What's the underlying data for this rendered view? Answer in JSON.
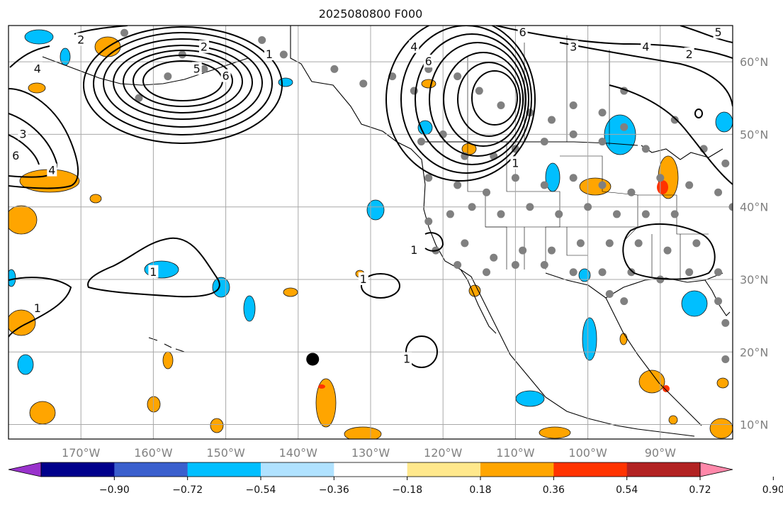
{
  "title": "2025080800 F000",
  "map": {
    "lon_range": [
      -180,
      -80
    ],
    "lat_range": [
      8,
      65
    ],
    "lon_ticks": [
      {
        "value": -170,
        "label": "170°W"
      },
      {
        "value": -160,
        "label": "160°W"
      },
      {
        "value": -150,
        "label": "150°W"
      },
      {
        "value": -140,
        "label": "140°W"
      },
      {
        "value": -130,
        "label": "130°W"
      },
      {
        "value": -120,
        "label": "120°W"
      },
      {
        "value": -110,
        "label": "110°W"
      },
      {
        "value": -100,
        "label": "100°W"
      },
      {
        "value": -90,
        "label": "90°W"
      }
    ],
    "lat_ticks": [
      {
        "value": 10,
        "label": "10°N"
      },
      {
        "value": 20,
        "label": "20°N"
      },
      {
        "value": 30,
        "label": "30°N"
      },
      {
        "value": 40,
        "label": "40°N"
      },
      {
        "value": 50,
        "label": "50°N"
      },
      {
        "value": 60,
        "label": "60°N"
      }
    ],
    "grid": true,
    "marker": {
      "lon": -138,
      "lat": 19,
      "color": "#000000"
    },
    "station_color": "#808080",
    "stations": [
      [
        -164,
        64
      ],
      [
        -162,
        55
      ],
      [
        -158,
        58
      ],
      [
        -156,
        61
      ],
      [
        -153,
        59
      ],
      [
        -145,
        63
      ],
      [
        -142,
        61
      ],
      [
        -135,
        59
      ],
      [
        -131,
        57
      ],
      [
        -127,
        58
      ],
      [
        -124,
        56
      ],
      [
        -122,
        59
      ],
      [
        -118,
        58
      ],
      [
        -115,
        56
      ],
      [
        -112,
        54
      ],
      [
        -108,
        53
      ],
      [
        -105,
        52
      ],
      [
        -102,
        54
      ],
      [
        -98,
        53
      ],
      [
        -95,
        56
      ],
      [
        -123,
        49
      ],
      [
        -120,
        50
      ],
      [
        -117,
        47
      ],
      [
        -113,
        47
      ],
      [
        -110,
        48
      ],
      [
        -106,
        49
      ],
      [
        -102,
        50
      ],
      [
        -98,
        49
      ],
      [
        -95,
        51
      ],
      [
        -92,
        48
      ],
      [
        -122,
        44
      ],
      [
        -118,
        43
      ],
      [
        -114,
        42
      ],
      [
        -110,
        44
      ],
      [
        -106,
        43
      ],
      [
        -102,
        44
      ],
      [
        -98,
        43
      ],
      [
        -94,
        42
      ],
      [
        -90,
        44
      ],
      [
        -86,
        43
      ],
      [
        -122,
        38
      ],
      [
        -119,
        39
      ],
      [
        -116,
        40
      ],
      [
        -112,
        39
      ],
      [
        -108,
        40
      ],
      [
        -104,
        39
      ],
      [
        -100,
        40
      ],
      [
        -96,
        39
      ],
      [
        -92,
        39
      ],
      [
        -88,
        39
      ],
      [
        -121,
        34
      ],
      [
        -117,
        35
      ],
      [
        -113,
        33
      ],
      [
        -109,
        34
      ],
      [
        -105,
        34
      ],
      [
        -101,
        35
      ],
      [
        -97,
        35
      ],
      [
        -93,
        35
      ],
      [
        -89,
        34
      ],
      [
        -85,
        35
      ],
      [
        -118,
        32
      ],
      [
        -114,
        31
      ],
      [
        -110,
        32
      ],
      [
        -106,
        32
      ],
      [
        -102,
        31
      ],
      [
        -98,
        31
      ],
      [
        -94,
        31
      ],
      [
        -90,
        30
      ],
      [
        -86,
        31
      ],
      [
        -82,
        31
      ],
      [
        -97,
        28
      ],
      [
        -95,
        27
      ],
      [
        -82,
        27
      ],
      [
        -81,
        24
      ],
      [
        -81,
        19
      ],
      [
        -82,
        42
      ],
      [
        -81,
        46
      ],
      [
        -84,
        48
      ],
      [
        -88,
        52
      ],
      [
        -80,
        40
      ]
    ],
    "colorbar": {
      "levels": [
        "−0.90",
        "−0.72",
        "−0.54",
        "−0.36",
        "−0.18",
        "0.18",
        "0.36",
        "0.54",
        "0.72",
        "0.90"
      ],
      "colors": [
        "#9932cc",
        "#00008b",
        "#3a5fcd",
        "#00bfff",
        "#b0e2ff",
        "#ffffff",
        "#ffe88c",
        "#ffa500",
        "#ff3300",
        "#b22222",
        "#ff88aa"
      ]
    },
    "contour_labels": [
      {
        "text": "2",
        "lon": -170,
        "lat": 63
      },
      {
        "text": "4",
        "lon": -176,
        "lat": 59
      },
      {
        "text": "2",
        "lon": -153,
        "lat": 62
      },
      {
        "text": "5",
        "lon": -154,
        "lat": 59
      },
      {
        "text": "6",
        "lon": -150,
        "lat": 58
      },
      {
        "text": "1",
        "lon": -144,
        "lat": 61
      },
      {
        "text": "3",
        "lon": -178,
        "lat": 50
      },
      {
        "text": "6",
        "lon": -179,
        "lat": 47
      },
      {
        "text": "4",
        "lon": -174,
        "lat": 45
      },
      {
        "text": "1",
        "lon": -160,
        "lat": 31
      },
      {
        "text": "1",
        "lon": -176,
        "lat": 26
      },
      {
        "text": "1",
        "lon": -131,
        "lat": 30
      },
      {
        "text": "1",
        "lon": -125,
        "lat": 19
      },
      {
        "text": "1",
        "lon": -124,
        "lat": 34
      },
      {
        "text": "4",
        "lon": -124,
        "lat": 62
      },
      {
        "text": "6",
        "lon": -122,
        "lat": 60
      },
      {
        "text": "6",
        "lon": -109,
        "lat": 64
      },
      {
        "text": "3",
        "lon": -102,
        "lat": 62
      },
      {
        "text": "4",
        "lon": -92,
        "lat": 62
      },
      {
        "text": "2",
        "lon": -86,
        "lat": 61
      },
      {
        "text": "5",
        "lon": -82,
        "lat": 64
      },
      {
        "text": "1",
        "lon": -110,
        "lat": 46
      }
    ]
  }
}
